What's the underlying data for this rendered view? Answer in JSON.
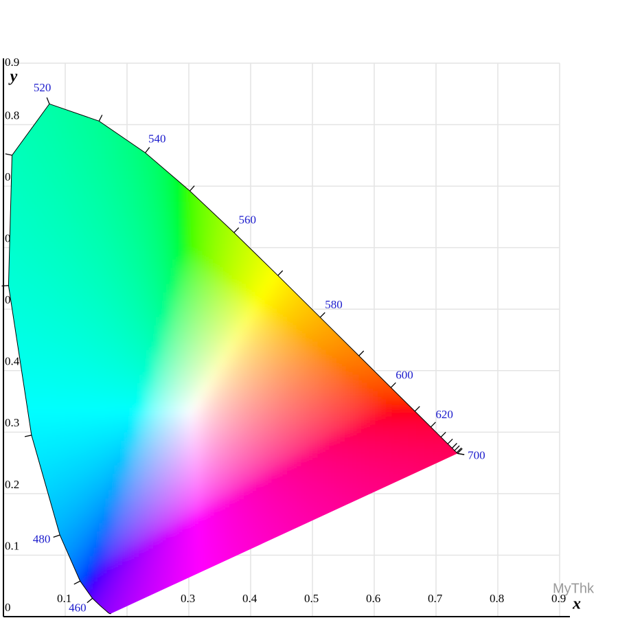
{
  "chart_data": {
    "type": "chromaticity",
    "xlabel": "x",
    "ylabel": "y",
    "xlim": [
      0,
      0.9
    ],
    "ylim": [
      0,
      0.9
    ],
    "xticks": [
      0.1,
      0.2,
      0.3,
      0.4,
      0.5,
      0.6,
      0.7,
      0.8,
      0.9
    ],
    "yticks": [
      0,
      0.1,
      0.2,
      0.3,
      0.4,
      0.5,
      0.6,
      0.7,
      0.8,
      0.9
    ],
    "grid": true,
    "line_color": "#000000",
    "label_color": "#1a1acc",
    "x": [
      0.1741,
      0.1738,
      0.1733,
      0.1726,
      0.1714,
      0.1689,
      0.1644,
      0.1566,
      0.144,
      0.1241,
      0.0913,
      0.0454,
      0.0082,
      0.0139,
      0.0743,
      0.1547,
      0.2296,
      0.3016,
      0.3731,
      0.4441,
      0.5125,
      0.5752,
      0.627,
      0.6658,
      0.6915,
      0.7079,
      0.719,
      0.726,
      0.73,
      0.7334,
      0.7347,
      0.7347,
      0.7347
    ],
    "values": [
      0.005,
      0.0049,
      0.0048,
      0.0048,
      0.0051,
      0.0069,
      0.0109,
      0.0177,
      0.0297,
      0.0578,
      0.1327,
      0.295,
      0.5384,
      0.7502,
      0.8338,
      0.8059,
      0.7543,
      0.6923,
      0.6245,
      0.5547,
      0.4866,
      0.4242,
      0.3725,
      0.334,
      0.3083,
      0.292,
      0.2809,
      0.274,
      0.27,
      0.2666,
      0.2653,
      0.2653,
      0.2653
    ],
    "labels": [
      null,
      null,
      null,
      null,
      null,
      null,
      null,
      null,
      "460",
      null,
      "480",
      null,
      null,
      null,
      "520",
      null,
      "540",
      null,
      "560",
      null,
      "580",
      null,
      "600",
      null,
      "620",
      null,
      null,
      null,
      null,
      null,
      null,
      null,
      "700"
    ],
    "watermark": "MyThk"
  }
}
